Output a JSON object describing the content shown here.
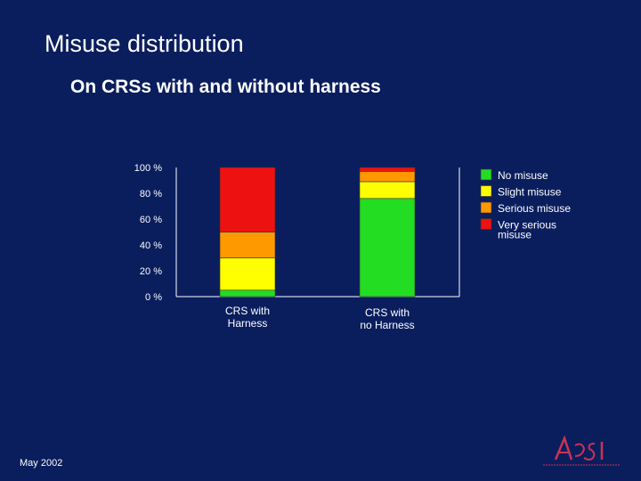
{
  "slide": {
    "title": "Misuse distribution",
    "subtitle": "On CRSs with and without harness",
    "date": "May 2002"
  },
  "colors": {
    "background": "#0a1e5e",
    "axis": "#ffffff",
    "no_misuse": "#22dd22",
    "slight_misuse": "#ffff00",
    "serious_misuse": "#ff9900",
    "very_serious_misuse": "#ee1111"
  },
  "chart_data": {
    "type": "bar",
    "stacked": true,
    "categories": [
      "CRS with\nHarness",
      "CRS with\nno Harness"
    ],
    "series": [
      {
        "name": "No misuse",
        "color": "#22dd22",
        "values": [
          5,
          76
        ]
      },
      {
        "name": "Slight misuse",
        "color": "#ffff00",
        "values": [
          25,
          13
        ]
      },
      {
        "name": "Serious misuse",
        "color": "#ff9900",
        "values": [
          20,
          8
        ]
      },
      {
        "name": "Very serious misuse",
        "color": "#ee1111",
        "values": [
          50,
          3
        ]
      }
    ],
    "y_ticks": [
      "0 %",
      "20 %",
      "40 %",
      "60 %",
      "80 %",
      "100 %"
    ],
    "ylim": [
      0,
      100
    ],
    "grid": false,
    "legend": "right"
  }
}
